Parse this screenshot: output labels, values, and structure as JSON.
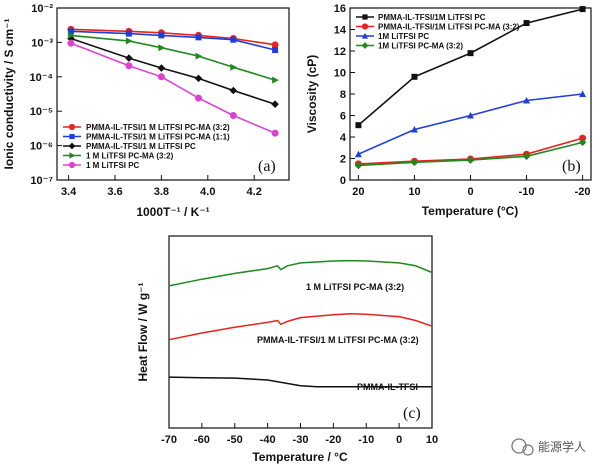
{
  "chart_data": [
    {
      "panel": "(a)",
      "type": "line",
      "xlabel": "1000T⁻¹ / K⁻¹",
      "ylabel": "Ionic conductivity / S cm⁻¹",
      "xlim": [
        3.35,
        4.35
      ],
      "ylim": [
        1e-07,
        0.01
      ],
      "log_y": true,
      "xticks": [
        "3.4",
        "3.6",
        "3.8",
        "4.0",
        "4.2"
      ],
      "yticks": [
        "10⁻⁷",
        "10⁻⁶",
        "10⁻⁵",
        "10⁻⁴",
        "10⁻³",
        "10⁻²"
      ],
      "legend_position": "bottom-left",
      "series": [
        {
          "name": "PMMA-IL-TFSI/1 M LiTFSI PC-MA (3:2)",
          "color": "#e8231f",
          "marker": "circle",
          "x": [
            3.41,
            3.66,
            3.8,
            3.96,
            4.11,
            4.29
          ],
          "y": [
            0.0024,
            0.0021,
            0.0019,
            0.0016,
            0.0013,
            0.00085
          ]
        },
        {
          "name": "PMMA-IL-TFSI/1 M LiTFSI PC-MA (1:1)",
          "color": "#1f3fd6",
          "marker": "square",
          "x": [
            3.41,
            3.66,
            3.8,
            3.96,
            4.11,
            4.29
          ],
          "y": [
            0.0021,
            0.0018,
            0.0016,
            0.0014,
            0.0012,
            0.0006
          ]
        },
        {
          "name": "PMMA-IL-TFSI/1 M LiTFSI PC",
          "color": "#111111",
          "marker": "diamond",
          "x": [
            3.41,
            3.66,
            3.8,
            3.96,
            4.11,
            4.29
          ],
          "y": [
            0.0013,
            0.00035,
            0.00018,
            9e-05,
            4e-05,
            1.6e-05
          ]
        },
        {
          "name": "1 M LiTFSI PC-MA (3:2)",
          "color": "#1e8a1e",
          "marker": "triangle-right",
          "x": [
            3.41,
            3.66,
            3.8,
            3.96,
            4.11,
            4.29
          ],
          "y": [
            0.0016,
            0.0011,
            0.0007,
            0.0004,
            0.00019,
            8e-05
          ]
        },
        {
          "name": "1 M LiTFSI PC",
          "color": "#e040d0",
          "marker": "circle",
          "x": [
            3.41,
            3.66,
            3.8,
            3.96,
            4.11,
            4.29
          ],
          "y": [
            0.00095,
            0.00021,
            0.0001,
            2.4e-05,
            7.5e-06,
            2.3e-06
          ]
        }
      ]
    },
    {
      "panel": "(b)",
      "type": "line",
      "xlabel": "Temperature (°C)",
      "ylabel": "Viscosity (cP)",
      "x_reversed": true,
      "xlim": [
        21.5,
        -21.5
      ],
      "ylim": [
        0,
        16
      ],
      "xticks": [
        "20",
        "10",
        "0",
        "-10",
        "-20"
      ],
      "yticks": [
        "0",
        "2",
        "4",
        "6",
        "8",
        "10",
        "12",
        "14",
        "16"
      ],
      "legend_position": "top-left",
      "series": [
        {
          "name": "PMMA-IL-TFSI/1M LiTFSI PC",
          "color": "#111111",
          "marker": "square",
          "x": [
            20,
            10,
            0,
            -10,
            -20
          ],
          "y": [
            5.1,
            9.6,
            11.8,
            14.6,
            15.9
          ]
        },
        {
          "name": "PMMA-IL-TFSI/1M LiTFSI PC-MA (3:2)",
          "color": "#e8231f",
          "marker": "circle",
          "x": [
            20,
            10,
            0,
            -10,
            -20
          ],
          "y": [
            1.5,
            1.75,
            1.95,
            2.4,
            3.9
          ]
        },
        {
          "name": "1M LiTFSI PC",
          "color": "#1f3fd6",
          "marker": "triangle",
          "x": [
            20,
            10,
            0,
            -10,
            -20
          ],
          "y": [
            2.4,
            4.7,
            6.0,
            7.4,
            8.0
          ]
        },
        {
          "name": "1M LiTFSI PC-MA (3:2)",
          "color": "#1e8a1e",
          "marker": "diamond",
          "x": [
            20,
            10,
            0,
            -10,
            -20
          ],
          "y": [
            1.35,
            1.65,
            1.85,
            2.2,
            3.5
          ]
        }
      ]
    },
    {
      "panel": "(c)",
      "type": "line",
      "xlabel": "Temperature / °C",
      "ylabel": "Heat Flow / W g⁻¹",
      "xlim": [
        -70,
        10
      ],
      "ylim": [
        0,
        10
      ],
      "xticks": [
        "-70",
        "-60",
        "-50",
        "-40",
        "-30",
        "-20",
        "-10",
        "0",
        "10"
      ],
      "series": [
        {
          "name": "1 M LiTFSI PC-MA (3:2)",
          "color": "#1e8a1e",
          "x": [
            -70,
            -60,
            -50,
            -40,
            -37,
            -36,
            -34,
            -30,
            -20,
            -15,
            -10,
            0,
            5,
            10
          ],
          "y": [
            7.4,
            7.75,
            8.05,
            8.3,
            8.45,
            8.25,
            8.45,
            8.6,
            8.7,
            8.72,
            8.7,
            8.6,
            8.45,
            8.1
          ]
        },
        {
          "name": "PMMA-IL-TFSI/1 M LiTFSI PC-MA (3:2)",
          "color": "#e8231f",
          "x": [
            -70,
            -60,
            -50,
            -40,
            -37,
            -36,
            -34,
            -30,
            -20,
            -15,
            -10,
            0,
            5,
            10
          ],
          "y": [
            4.6,
            4.95,
            5.25,
            5.5,
            5.6,
            5.4,
            5.55,
            5.75,
            5.9,
            5.95,
            5.92,
            5.8,
            5.6,
            5.3
          ]
        },
        {
          "name": "PMMA-IL-TFSI",
          "color": "#111111",
          "x": [
            -70,
            -60,
            -50,
            -40,
            -35,
            -30,
            -25,
            -20,
            -10,
            0,
            10
          ],
          "y": [
            2.65,
            2.62,
            2.6,
            2.5,
            2.35,
            2.2,
            2.15,
            2.15,
            2.15,
            2.15,
            2.15
          ]
        }
      ],
      "annotations": [
        {
          "text": "1 M LiTFSI PC-MA (3:2)",
          "color": "#1e8a1e"
        },
        {
          "text": "PMMA-IL-TFSI/1 M LiTFSI PC-MA (3:2)",
          "color": "#e8231f"
        },
        {
          "text": "PMMA-IL-TFSI",
          "color": "#111111"
        }
      ]
    }
  ],
  "watermark": "能源学人"
}
